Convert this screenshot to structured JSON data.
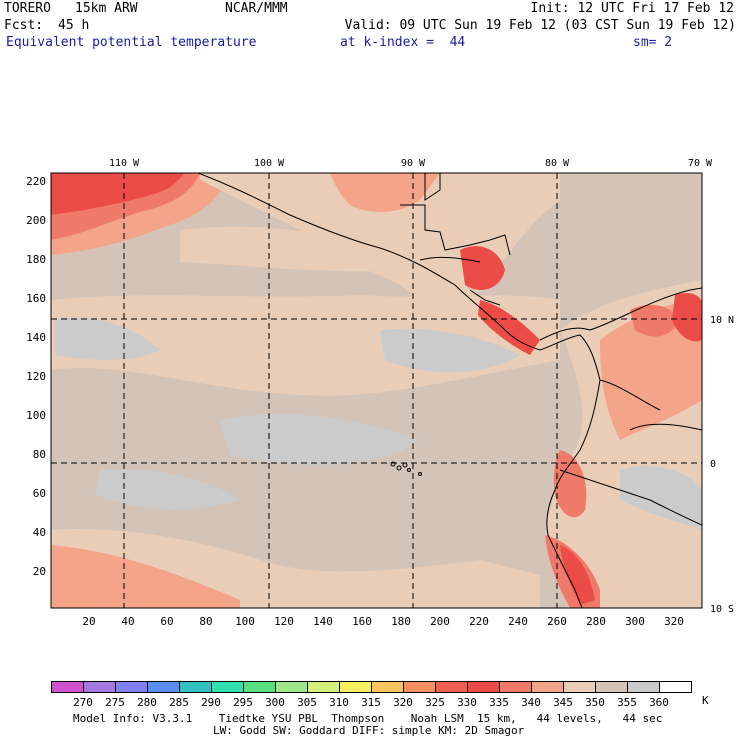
{
  "header": {
    "model": "TORERO",
    "resolution": "15km ARW",
    "org": "NCAR/MMM",
    "init": "Init: 12 UTC Fri 17 Feb 12",
    "fcst_label": "Fcst:",
    "fcst_value": "45 h",
    "valid": "Valid: 09 UTC Sun 19 Feb 12 (03 CST Sun 19 Feb 12)",
    "field": "Equivalent potential temperature",
    "level": "at k-index =  44",
    "smooth": "sm= 2"
  },
  "map": {
    "top_lon_labels": [
      "110 W",
      "100 W",
      "90 W",
      "80 W",
      "70 W"
    ],
    "right_lat_labels": [
      "10 N",
      "0",
      "10 S"
    ],
    "left_axis_labels": [
      "220",
      "200",
      "180",
      "160",
      "140",
      "120",
      "100",
      "80",
      "60",
      "40",
      "20"
    ],
    "bottom_axis_labels": [
      "20",
      "40",
      "60",
      "80",
      "100",
      "120",
      "140",
      "160",
      "180",
      "200",
      "220",
      "240",
      "260",
      "280",
      "300",
      "320"
    ],
    "colors": {
      "ocean_low": "#cbcbcb",
      "ocean_mid": "#d4c4b7",
      "ocean_warm": "#eacdb6",
      "warm_335": "#f4a489",
      "warm_330": "#f07a6a",
      "warm_325": "#ec4c47",
      "land_line": "#000000",
      "grid_line": "#000000"
    }
  },
  "colorbar": {
    "labels": [
      "270",
      "275",
      "280",
      "285",
      "290",
      "295",
      "300",
      "305",
      "310",
      "315",
      "320",
      "325",
      "330",
      "335",
      "340",
      "345",
      "350",
      "355",
      "360"
    ],
    "unit": "K",
    "colors": [
      "#d051d0",
      "#a57ae0",
      "#8080f0",
      "#5a8ef0",
      "#33c0c0",
      "#33e0b0",
      "#57e07f",
      "#9ee88a",
      "#d5f07a",
      "#f5f060",
      "#f8c560",
      "#f59060",
      "#f06050",
      "#ec4c47",
      "#f07a6a",
      "#f4a489",
      "#eacdb6",
      "#d4c4b7",
      "#cbcbcb",
      "#ffffff"
    ]
  },
  "footer": {
    "line1": "Model Info: V3.3.1    Tiedtke YSU PBL  Thompson    Noah LSM  15 km,   44 levels,   44 sec",
    "line2": "LW: Godd SW: Goddard DIFF: simple KM: 2D Smagor"
  }
}
